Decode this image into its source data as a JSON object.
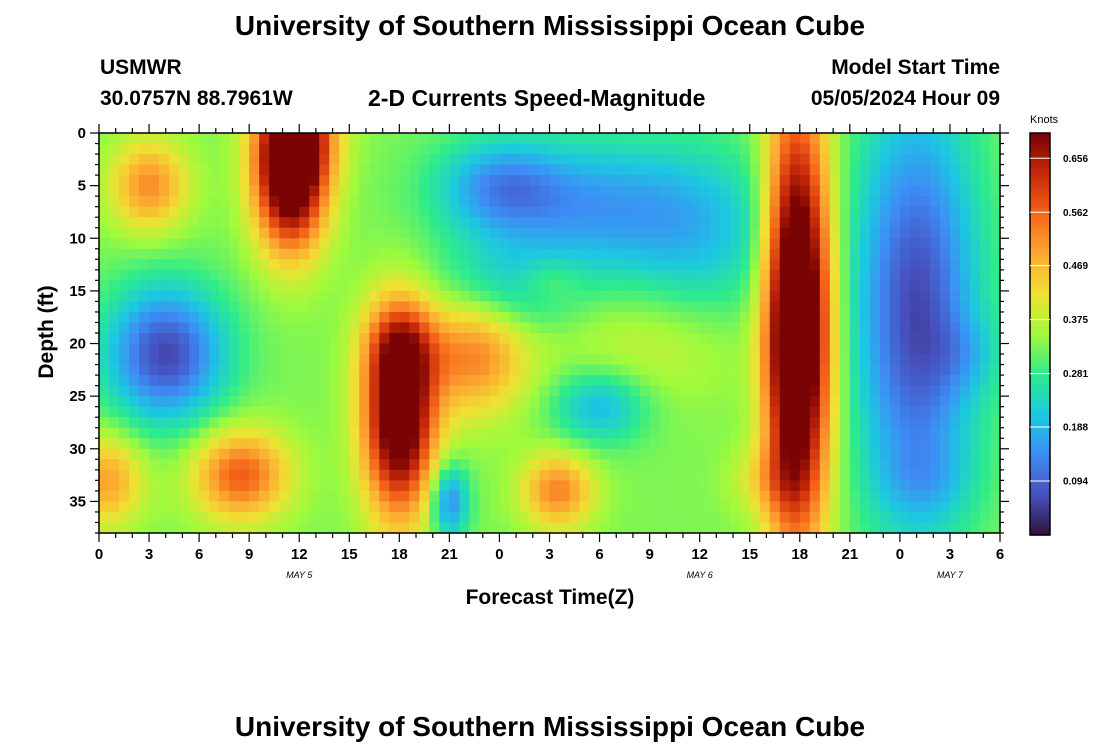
{
  "page": {
    "title_top": "University of Southern Mississippi Ocean Cube",
    "title_bottom": "University of Southern Mississippi Ocean Cube",
    "station_id": "USMWR",
    "station_coords": "30.0757N  88.7961W",
    "plot_title": "2-D Currents Speed-Magnitude",
    "model_label": "Model Start Time",
    "model_time": "05/05/2024 Hour 09"
  },
  "chart_data": {
    "type": "heatmap",
    "title": "2-D Currents Speed-Magnitude",
    "xlabel": "Forecast Time(Z)",
    "ylabel": "Depth (ft)",
    "colorbar_label": "Knots",
    "x_ticks": [
      {
        "h": 0,
        "label": "0"
      },
      {
        "h": 3,
        "label": "3"
      },
      {
        "h": 6,
        "label": "6"
      },
      {
        "h": 9,
        "label": "9"
      },
      {
        "h": 12,
        "label": "12"
      },
      {
        "h": 15,
        "label": "15"
      },
      {
        "h": 18,
        "label": "18"
      },
      {
        "h": 21,
        "label": "21"
      },
      {
        "h": 24,
        "label": "0"
      },
      {
        "h": 27,
        "label": "3"
      },
      {
        "h": 30,
        "label": "6"
      },
      {
        "h": 33,
        "label": "9"
      },
      {
        "h": 36,
        "label": "12"
      },
      {
        "h": 39,
        "label": "15"
      },
      {
        "h": 42,
        "label": "18"
      },
      {
        "h": 45,
        "label": "21"
      },
      {
        "h": 48,
        "label": "0"
      },
      {
        "h": 51,
        "label": "3"
      },
      {
        "h": 54,
        "label": "6"
      }
    ],
    "date_labels": [
      {
        "h": 12,
        "label": "MAY 5"
      },
      {
        "h": 36,
        "label": "MAY 6"
      },
      {
        "h": 51,
        "label": "MAY 7"
      }
    ],
    "xlim": [
      0,
      54
    ],
    "y_ticks": [
      0,
      5,
      10,
      15,
      20,
      25,
      30,
      35
    ],
    "ylim": [
      0,
      38
    ],
    "colorbar": {
      "min": 0.0,
      "max": 0.7,
      "ticks": [
        0.094,
        0.188,
        0.281,
        0.375,
        0.469,
        0.562,
        0.656
      ]
    },
    "blobs": [
      {
        "x": 3,
        "y": 5,
        "sx": 1.6,
        "sy": 3,
        "v": 0.19
      },
      {
        "x": 4,
        "y": 21,
        "sx": 2.5,
        "sy": 4.5,
        "v": -0.27
      },
      {
        "x": 0.5,
        "y": 33,
        "sx": 1.5,
        "sy": 3,
        "v": 0.17
      },
      {
        "x": 8.5,
        "y": 32.5,
        "sx": 2,
        "sy": 3,
        "v": 0.24
      },
      {
        "x": 11.5,
        "y": 4,
        "sx": 1.5,
        "sy": 5,
        "v": 0.48
      },
      {
        "x": 12,
        "y": 0,
        "sx": 1.6,
        "sy": 3,
        "v": 0.2
      },
      {
        "x": 18,
        "y": 27,
        "sx": 1.5,
        "sy": 6.5,
        "v": 0.46
      },
      {
        "x": 18,
        "y": 20,
        "sx": 1.5,
        "sy": 3,
        "v": 0.14
      },
      {
        "x": 22.5,
        "y": 21,
        "sx": 2.2,
        "sy": 4,
        "v": 0.2
      },
      {
        "x": 21,
        "y": 35,
        "sx": 0.8,
        "sy": 2.5,
        "v": -0.2
      },
      {
        "x": 27.5,
        "y": 34,
        "sx": 1.5,
        "sy": 2.5,
        "v": 0.2
      },
      {
        "x": 29,
        "y": 7,
        "sx": 5,
        "sy": 4.5,
        "v": -0.16
      },
      {
        "x": 24,
        "y": 5,
        "sx": 2.5,
        "sy": 3,
        "v": -0.13
      },
      {
        "x": 24.5,
        "y": 15,
        "sx": 3,
        "sy": 3,
        "v": -0.1
      },
      {
        "x": 30,
        "y": 26,
        "sx": 2,
        "sy": 2.5,
        "v": -0.14
      },
      {
        "x": 36,
        "y": 10,
        "sx": 3.5,
        "sy": 6,
        "v": -0.1
      },
      {
        "x": 27,
        "y": 14,
        "sx": 1.3,
        "sy": 1.5,
        "v": 0.06
      },
      {
        "x": 33,
        "y": 20,
        "sx": 4,
        "sy": 4,
        "v": 0.06
      },
      {
        "x": 40,
        "y": 33,
        "sx": 1.5,
        "sy": 2.5,
        "v": 0.08
      },
      {
        "x": 41.2,
        "y": 18,
        "sx": 1.1,
        "sy": 14,
        "v": 0.32
      },
      {
        "x": 42.5,
        "y": 18,
        "sx": 1.2,
        "sy": 14,
        "v": 0.34
      },
      {
        "x": 49,
        "y": 17,
        "sx": 2.6,
        "sy": 14,
        "v": -0.27
      },
      {
        "x": 49.5,
        "y": 33,
        "sx": 2,
        "sy": 2.5,
        "v": -0.05
      },
      {
        "x": 52,
        "y": 21,
        "sx": 1.5,
        "sy": 2.5,
        "v": -0.05
      }
    ]
  }
}
